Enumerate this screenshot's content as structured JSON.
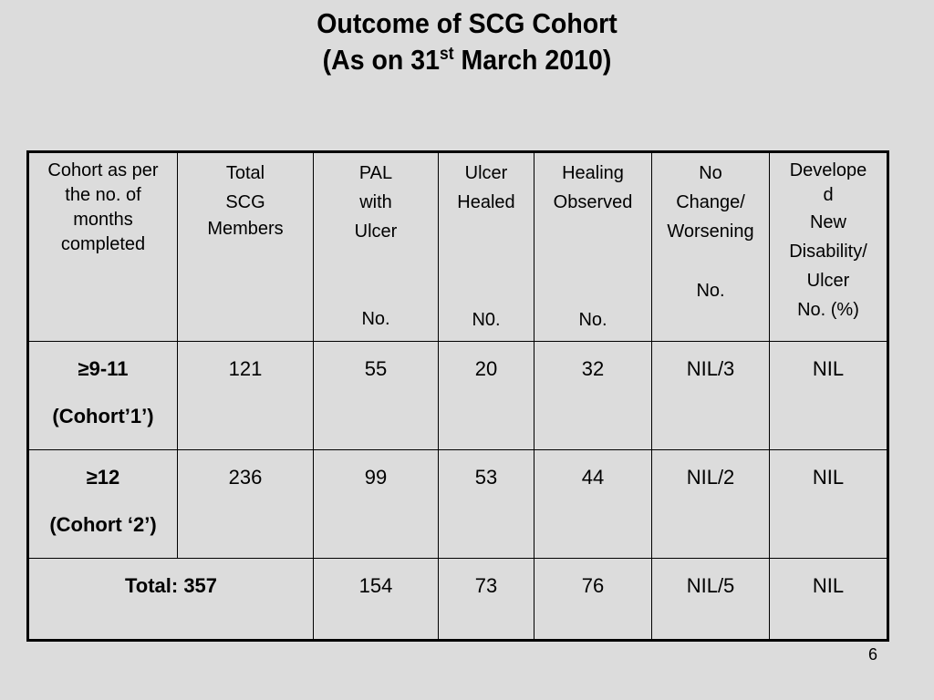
{
  "title": {
    "line1": "Outcome of SCG Cohort",
    "line2_pre": "(As on 31",
    "line2_sup": "st",
    "line2_post": " March 2010)"
  },
  "table": {
    "header": {
      "cohort": [
        "Cohort as per",
        "the no. of",
        "months",
        "completed"
      ],
      "total": [
        "Total",
        "SCG",
        "Members"
      ],
      "pal": [
        "PAL",
        "with",
        "Ulcer",
        "No."
      ],
      "healed": [
        "Ulcer",
        "Healed",
        "N0."
      ],
      "healing": [
        "Healing",
        "Observed",
        "No."
      ],
      "nochange": [
        "No",
        "Change/",
        "Worsening",
        "No."
      ],
      "developed": [
        "Develope",
        "d",
        "New",
        "Disability/",
        "Ulcer",
        "No. (%)"
      ]
    },
    "rows": [
      {
        "label1": "≥9-11",
        "label2": "(Cohort’1’)",
        "total": "121",
        "pal": "55",
        "healed": "20",
        "healing": "32",
        "nochange": "NIL/3",
        "developed": "NIL"
      },
      {
        "label1": "≥12",
        "label2": "(Cohort ‘2’)",
        "total": "236",
        "pal": "99",
        "healed": "53",
        "healing": "44",
        "nochange": "NIL/2",
        "developed": "NIL"
      }
    ],
    "total_row": {
      "label": "Total: 357",
      "pal": "154",
      "healed": "73",
      "healing": "76",
      "nochange": "NIL/5",
      "developed": "NIL"
    }
  },
  "page_number": "6"
}
